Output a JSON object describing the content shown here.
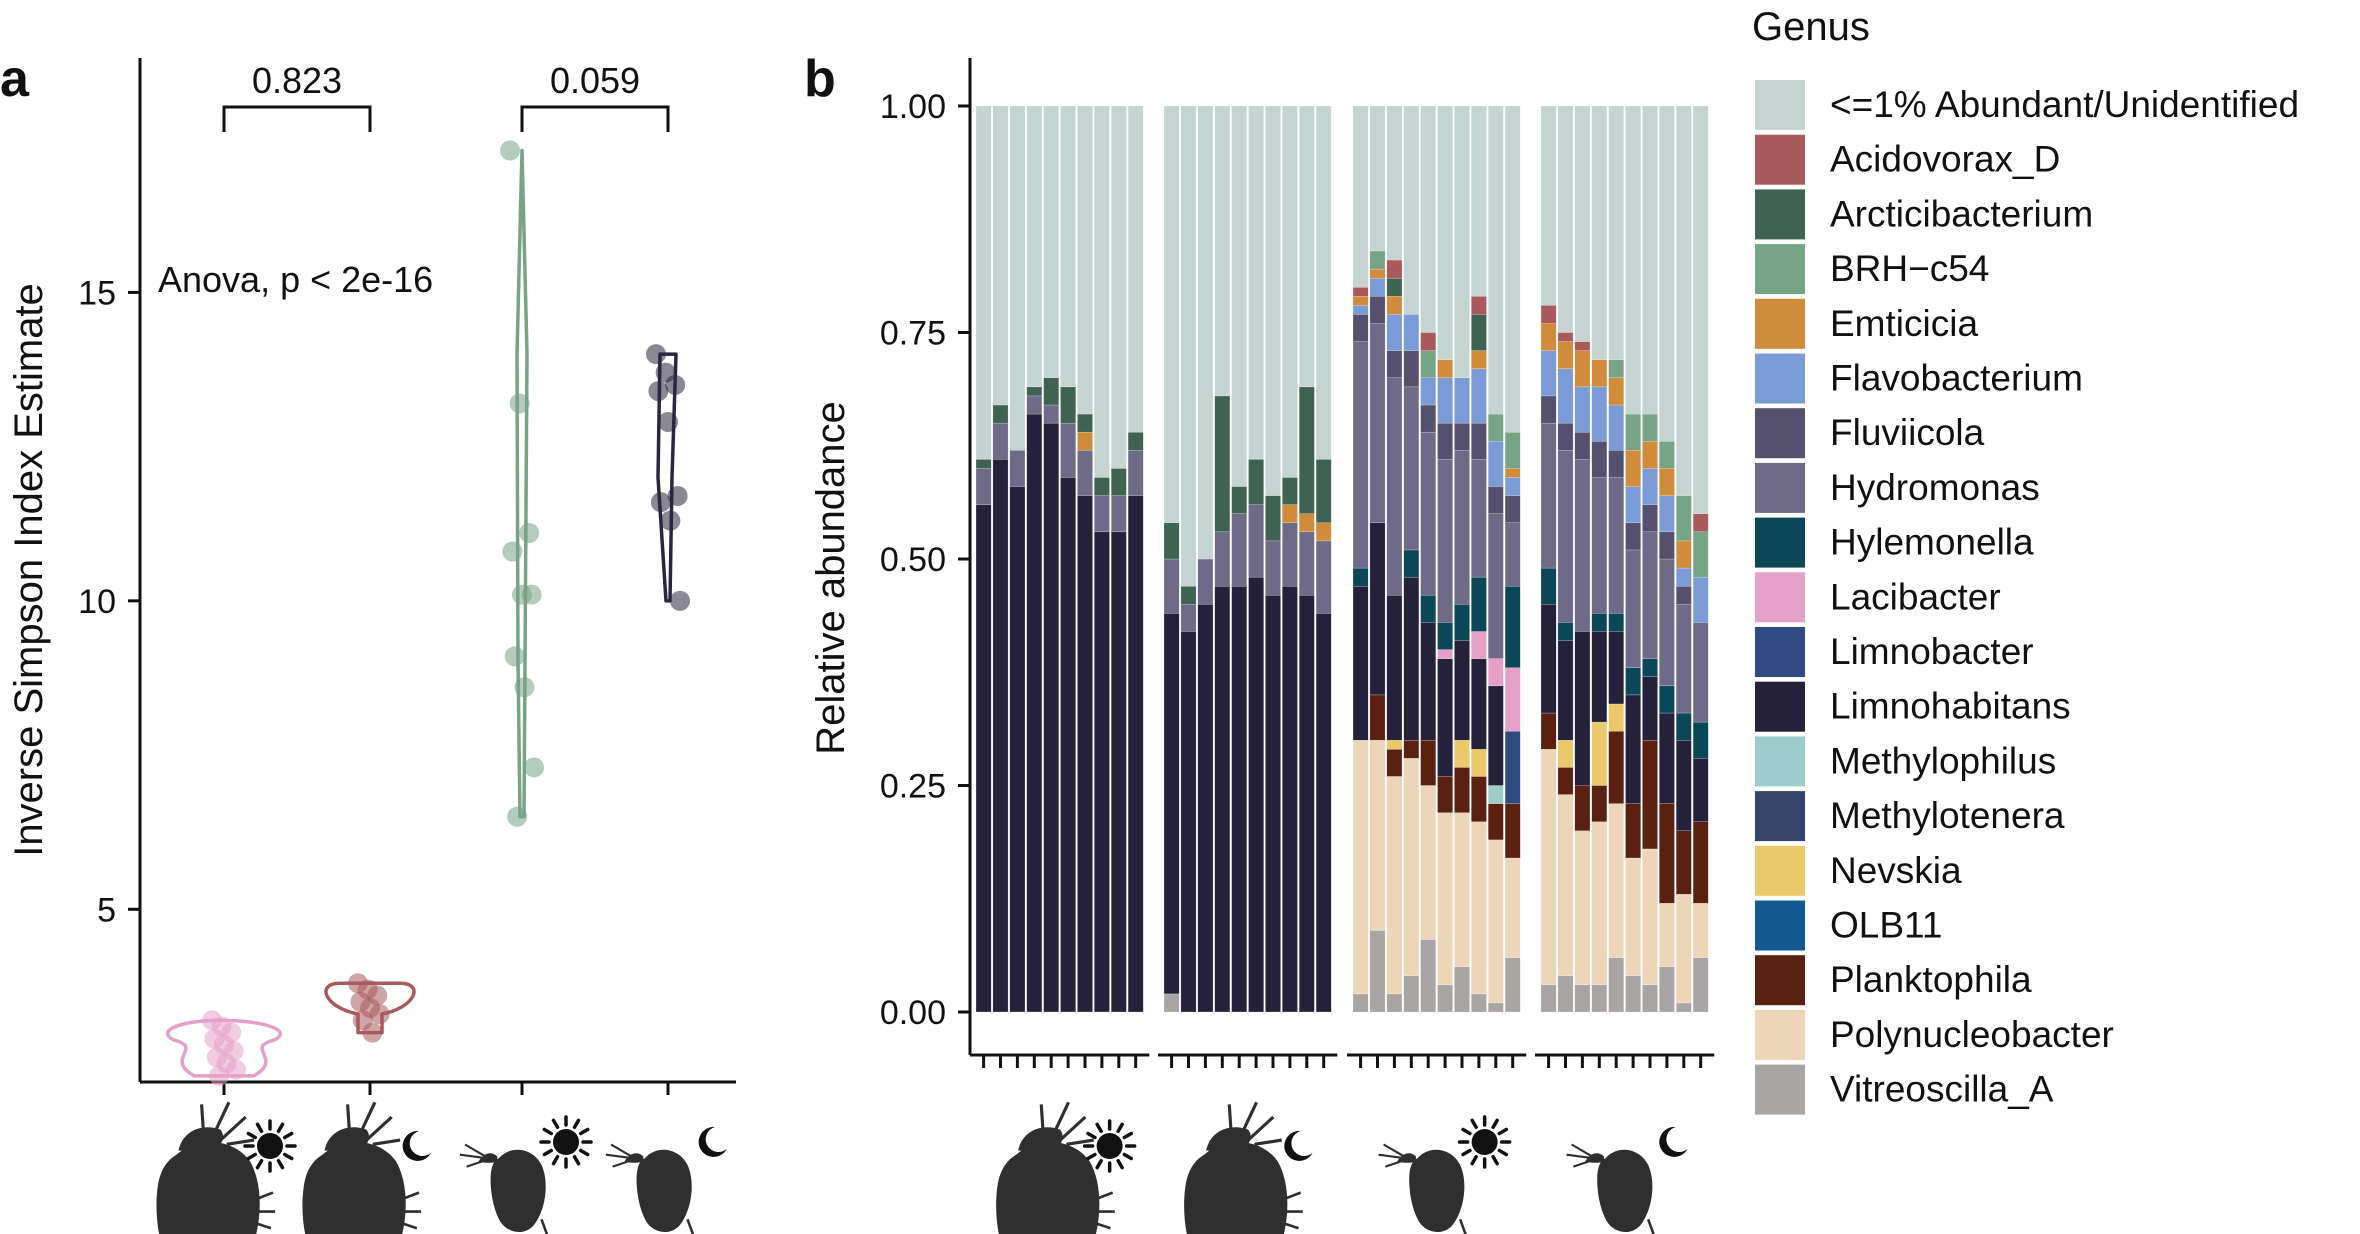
{
  "colors": {
    "Unidentified": "#c5d3d1",
    "Acidovorax_D": "#a85a5d",
    "Arcticibacterium": "#3f6352",
    "BRH-c54": "#77a387",
    "Emticicia": "#d08c3a",
    "Flavobacterium": "#7b9bd6",
    "Fluviicola": "#55506e",
    "Hydromonas": "#6e6a88",
    "Hylemonella": "#0c4759",
    "Lacibacter": "#e5a0c8",
    "Limnobacter": "#2f4a83",
    "Limnohabitans": "#25213b",
    "Methylophilus": "#9ecbcc",
    "Methylotenera": "#36446a",
    "Nevskia": "#ebc96a",
    "OLB11": "#125893",
    "Planktophila": "#5a2110",
    "Polynucleobacter": "#edd5b8",
    "Vitreoscilla_A": "#aaa5a5",
    "group_a": "#e5a0c8",
    "group_b": "#a85a5d",
    "group_c": "#77a387",
    "group_d": "#2b2640",
    "silhouette": "#2f2f2f"
  },
  "icons": {
    "groups": [
      "large-daphnia-sun-icon",
      "large-daphnia-moon-icon",
      "small-daphnia-sun-icon",
      "small-daphnia-moon-icon"
    ]
  },
  "panel_a": {
    "letter": "a",
    "anova": "Anova, p < 2e-16",
    "brackets": [
      {
        "label": "0.823",
        "between": [
          0,
          1
        ]
      },
      {
        "label": "0.059",
        "between": [
          2,
          3
        ]
      }
    ]
  },
  "panel_b": {
    "letter": "b"
  },
  "legend": {
    "title": "Genus",
    "entries": [
      "<=1% Abundant/Unidentified",
      "Acidovorax_D",
      "Arcticibacterium",
      "BRH−c54",
      "Emticicia",
      "Flavobacterium",
      "Fluviicola",
      "Hydromonas",
      "Hylemonella",
      "Lacibacter",
      "Limnobacter",
      "Limnohabitans",
      "Methylophilus",
      "Methylotenera",
      "Nevskia",
      "OLB11",
      "Planktophila",
      "Polynucleobacter",
      "Vitreoscilla_A"
    ]
  },
  "chart_data": [
    {
      "type": "scatter",
      "ylabel": "Inverse Simpson Index Estimate",
      "ylim": [
        2.2,
        18.8
      ],
      "yticks": [
        5,
        10,
        15
      ],
      "legend": "none",
      "grid": false,
      "groups": [
        {
          "color_key": "group_a",
          "points": [
            3.2,
            3.1,
            3.0,
            2.9,
            2.8,
            2.7,
            2.6,
            2.5,
            2.4,
            2.3
          ]
        },
        {
          "color_key": "group_b",
          "points": [
            3.8,
            3.7,
            3.6,
            3.5,
            3.4,
            3.3,
            3.2,
            3.0
          ]
        },
        {
          "color_key": "group_c",
          "points": [
            17.3,
            13.2,
            11.1,
            10.8,
            10.1,
            10.1,
            9.1,
            8.6,
            7.3,
            6.5
          ]
        },
        {
          "color_key": "group_d",
          "points": [
            14.0,
            13.7,
            13.5,
            13.4,
            12.9,
            11.7,
            11.6,
            11.3,
            10.0
          ]
        }
      ]
    },
    {
      "type": "bar",
      "stacked": true,
      "ylabel": "Relative abundance",
      "ylim": [
        0,
        1.05
      ],
      "yticks": [
        "0.00",
        "0.25",
        "0.50",
        "0.75",
        "1.00"
      ],
      "legend": "right",
      "grid": false,
      "stack_order": [
        "Vitreoscilla_A",
        "Polynucleobacter",
        "Planktophila",
        "OLB11",
        "Nevskia",
        "Methylotenera",
        "Methylophilus",
        "Limnohabitans",
        "Limnobacter",
        "Lacibacter",
        "Hylemonella",
        "Hydromonas",
        "Fluviicola",
        "Flavobacterium",
        "Emticicia",
        "BRH-c54",
        "Arcticibacterium",
        "Acidovorax_D",
        "Unidentified"
      ],
      "facets": [
        {
          "bars": [
            {
              "Limnohabitans": 0.56,
              "Hydromonas": 0.04,
              "Arcticibacterium": 0.01
            },
            {
              "Limnohabitans": 0.61,
              "Hydromonas": 0.04,
              "Arcticibacterium": 0.02
            },
            {
              "Limnohabitans": 0.58,
              "Hydromonas": 0.04
            },
            {
              "Limnohabitans": 0.66,
              "Hydromonas": 0.02,
              "Arcticibacterium": 0.01
            },
            {
              "Limnohabitans": 0.65,
              "Hydromonas": 0.02,
              "Arcticibacterium": 0.03
            },
            {
              "Limnohabitans": 0.59,
              "Hydromonas": 0.06,
              "Arcticibacterium": 0.04
            },
            {
              "Limnohabitans": 0.57,
              "Hydromonas": 0.05,
              "Emticicia": 0.02,
              "Arcticibacterium": 0.02
            },
            {
              "Limnohabitans": 0.53,
              "Hydromonas": 0.04,
              "Arcticibacterium": 0.02
            },
            {
              "Limnohabitans": 0.53,
              "Hydromonas": 0.04,
              "Arcticibacterium": 0.03
            },
            {
              "Limnohabitans": 0.57,
              "Hydromonas": 0.05,
              "Arcticibacterium": 0.02
            }
          ]
        },
        {
          "bars": [
            {
              "Vitreoscilla_A": 0.02,
              "Limnohabitans": 0.42,
              "Hydromonas": 0.06,
              "Arcticibacterium": 0.04
            },
            {
              "Limnohabitans": 0.42,
              "Hydromonas": 0.03,
              "Arcticibacterium": 0.02
            },
            {
              "Limnohabitans": 0.45,
              "Hydromonas": 0.05
            },
            {
              "Limnohabitans": 0.47,
              "Hydromonas": 0.06,
              "Arcticibacterium": 0.15
            },
            {
              "Limnohabitans": 0.47,
              "Hydromonas": 0.08,
              "Arcticibacterium": 0.03
            },
            {
              "Limnohabitans": 0.48,
              "Hydromonas": 0.08,
              "Arcticibacterium": 0.05
            },
            {
              "Limnohabitans": 0.46,
              "Hydromonas": 0.06,
              "Arcticibacterium": 0.05
            },
            {
              "Limnohabitans": 0.47,
              "Hydromonas": 0.07,
              "Emticicia": 0.02,
              "Arcticibacterium": 0.03
            },
            {
              "Limnohabitans": 0.46,
              "Hydromonas": 0.07,
              "Emticicia": 0.02,
              "Arcticibacterium": 0.14
            },
            {
              "Limnohabitans": 0.44,
              "Hydromonas": 0.08,
              "Emticicia": 0.02,
              "Arcticibacterium": 0.07
            }
          ]
        },
        {
          "bars": [
            {
              "Vitreoscilla_A": 0.02,
              "Polynucleobacter": 0.28,
              "Limnohabitans": 0.17,
              "Hylemonella": 0.02,
              "Hydromonas": 0.25,
              "Fluviicola": 0.03,
              "Flavobacterium": 0.01,
              "Emticicia": 0.01,
              "Acidovorax_D": 0.01
            },
            {
              "Vitreoscilla_A": 0.09,
              "Polynucleobacter": 0.21,
              "Planktophila": 0.05,
              "Limnohabitans": 0.19,
              "Hydromonas": 0.22,
              "Fluviicola": 0.03,
              "Flavobacterium": 0.02,
              "Emticicia": 0.01,
              "BRH-c54": 0.02
            },
            {
              "Vitreoscilla_A": 0.02,
              "Polynucleobacter": 0.24,
              "Planktophila": 0.03,
              "Nevskia": 0.01,
              "Limnohabitans": 0.16,
              "Hydromonas": 0.24,
              "Fluviicola": 0.03,
              "Flavobacterium": 0.04,
              "Emticicia": 0.02,
              "Arcticibacterium": 0.02,
              "Acidovorax_D": 0.02
            },
            {
              "Vitreoscilla_A": 0.04,
              "Polynucleobacter": 0.24,
              "Planktophila": 0.02,
              "Limnohabitans": 0.18,
              "Hylemonella": 0.03,
              "Hydromonas": 0.18,
              "Fluviicola": 0.04,
              "Flavobacterium": 0.04
            },
            {
              "Vitreoscilla_A": 0.08,
              "Polynucleobacter": 0.17,
              "Planktophila": 0.05,
              "Limnohabitans": 0.13,
              "Hylemonella": 0.03,
              "Hydromonas": 0.18,
              "Fluviicola": 0.03,
              "Flavobacterium": 0.03,
              "BRH-c54": 0.03,
              "Acidovorax_D": 0.02
            },
            {
              "Vitreoscilla_A": 0.03,
              "Polynucleobacter": 0.19,
              "Planktophila": 0.04,
              "Lacibacter": 0.01,
              "Limnohabitans": 0.13,
              "Hylemonella": 0.03,
              "Hydromonas": 0.18,
              "Fluviicola": 0.04,
              "Flavobacterium": 0.05,
              "Emticicia": 0.02
            },
            {
              "Vitreoscilla_A": 0.05,
              "Polynucleobacter": 0.17,
              "Planktophila": 0.05,
              "Nevskia": 0.03,
              "Limnohabitans": 0.11,
              "Hylemonella": 0.04,
              "Hydromonas": 0.17,
              "Fluviicola": 0.03,
              "Flavobacterium": 0.05
            },
            {
              "Vitreoscilla_A": 0.02,
              "Polynucleobacter": 0.19,
              "Planktophila": 0.05,
              "Nevskia": 0.03,
              "Lacibacter": 0.03,
              "Limnohabitans": 0.1,
              "Hylemonella": 0.06,
              "Hydromonas": 0.13,
              "Fluviicola": 0.04,
              "Flavobacterium": 0.06,
              "Emticicia": 0.02,
              "Arcticibacterium": 0.04,
              "Acidovorax_D": 0.02
            },
            {
              "Vitreoscilla_A": 0.01,
              "Polynucleobacter": 0.18,
              "Planktophila": 0.04,
              "Methylophilus": 0.02,
              "Lacibacter": 0.03,
              "Limnohabitans": 0.11,
              "Hydromonas": 0.16,
              "Fluviicola": 0.03,
              "Flavobacterium": 0.05,
              "BRH-c54": 0.03
            },
            {
              "Vitreoscilla_A": 0.06,
              "Polynucleobacter": 0.11,
              "Planktophila": 0.06,
              "Limnobacter": 0.08,
              "Lacibacter": 0.07,
              "Hylemonella": 0.09,
              "Hydromonas": 0.07,
              "Fluviicola": 0.03,
              "Flavobacterium": 0.02,
              "Emticicia": 0.01,
              "BRH-c54": 0.04
            }
          ]
        },
        {
          "bars": [
            {
              "Vitreoscilla_A": 0.03,
              "Polynucleobacter": 0.26,
              "Planktophila": 0.04,
              "Limnohabitans": 0.12,
              "Hylemonella": 0.04,
              "Hydromonas": 0.16,
              "Fluviicola": 0.03,
              "Flavobacterium": 0.05,
              "Emticicia": 0.03,
              "Acidovorax_D": 0.02
            },
            {
              "Vitreoscilla_A": 0.04,
              "Polynucleobacter": 0.2,
              "Planktophila": 0.03,
              "Nevskia": 0.03,
              "Limnohabitans": 0.11,
              "Hylemonella": 0.02,
              "Hydromonas": 0.19,
              "Fluviicola": 0.03,
              "Flavobacterium": 0.06,
              "Emticicia": 0.03,
              "Acidovorax_D": 0.01
            },
            {
              "Vitreoscilla_A": 0.03,
              "Polynucleobacter": 0.17,
              "Planktophila": 0.05,
              "Limnohabitans": 0.17,
              "Hydromonas": 0.19,
              "Fluviicola": 0.03,
              "Flavobacterium": 0.05,
              "Emticicia": 0.04,
              "Acidovorax_D": 0.01
            },
            {
              "Vitreoscilla_A": 0.03,
              "Polynucleobacter": 0.18,
              "Planktophila": 0.04,
              "Nevskia": 0.07,
              "Limnohabitans": 0.1,
              "Hylemonella": 0.02,
              "Hydromonas": 0.15,
              "Fluviicola": 0.04,
              "Flavobacterium": 0.06,
              "Emticicia": 0.03
            },
            {
              "Vitreoscilla_A": 0.06,
              "Polynucleobacter": 0.17,
              "Planktophila": 0.08,
              "Nevskia": 0.03,
              "Limnohabitans": 0.08,
              "Hylemonella": 0.02,
              "Hydromonas": 0.15,
              "Fluviicola": 0.03,
              "Flavobacterium": 0.05,
              "Emticicia": 0.03,
              "BRH-c54": 0.02
            },
            {
              "Vitreoscilla_A": 0.04,
              "Polynucleobacter": 0.13,
              "Planktophila": 0.06,
              "Limnohabitans": 0.12,
              "Hylemonella": 0.03,
              "Hydromonas": 0.13,
              "Fluviicola": 0.03,
              "Flavobacterium": 0.04,
              "Emticicia": 0.04,
              "BRH-c54": 0.04
            },
            {
              "Vitreoscilla_A": 0.03,
              "Polynucleobacter": 0.15,
              "Planktophila": 0.12,
              "Limnohabitans": 0.07,
              "Hylemonella": 0.02,
              "Hydromonas": 0.14,
              "Fluviicola": 0.03,
              "Flavobacterium": 0.04,
              "Emticicia": 0.03,
              "BRH-c54": 0.03
            },
            {
              "Vitreoscilla_A": 0.05,
              "Polynucleobacter": 0.07,
              "Planktophila": 0.11,
              "Limnohabitans": 0.1,
              "Hylemonella": 0.03,
              "Hydromonas": 0.14,
              "Fluviicola": 0.03,
              "Flavobacterium": 0.04,
              "Emticicia": 0.03,
              "BRH-c54": 0.03
            },
            {
              "Vitreoscilla_A": 0.01,
              "Polynucleobacter": 0.12,
              "Planktophila": 0.07,
              "Limnohabitans": 0.1,
              "Hylemonella": 0.03,
              "Hydromonas": 0.12,
              "Fluviicola": 0.02,
              "Flavobacterium": 0.02,
              "Emticicia": 0.03,
              "BRH-c54": 0.05
            },
            {
              "Vitreoscilla_A": 0.06,
              "Polynucleobacter": 0.06,
              "Planktophila": 0.09,
              "Limnohabitans": 0.07,
              "Hylemonella": 0.04,
              "Hydromonas": 0.11,
              "Flavobacterium": 0.05,
              "BRH-c54": 0.05,
              "Acidovorax_D": 0.02
            }
          ]
        }
      ]
    }
  ]
}
